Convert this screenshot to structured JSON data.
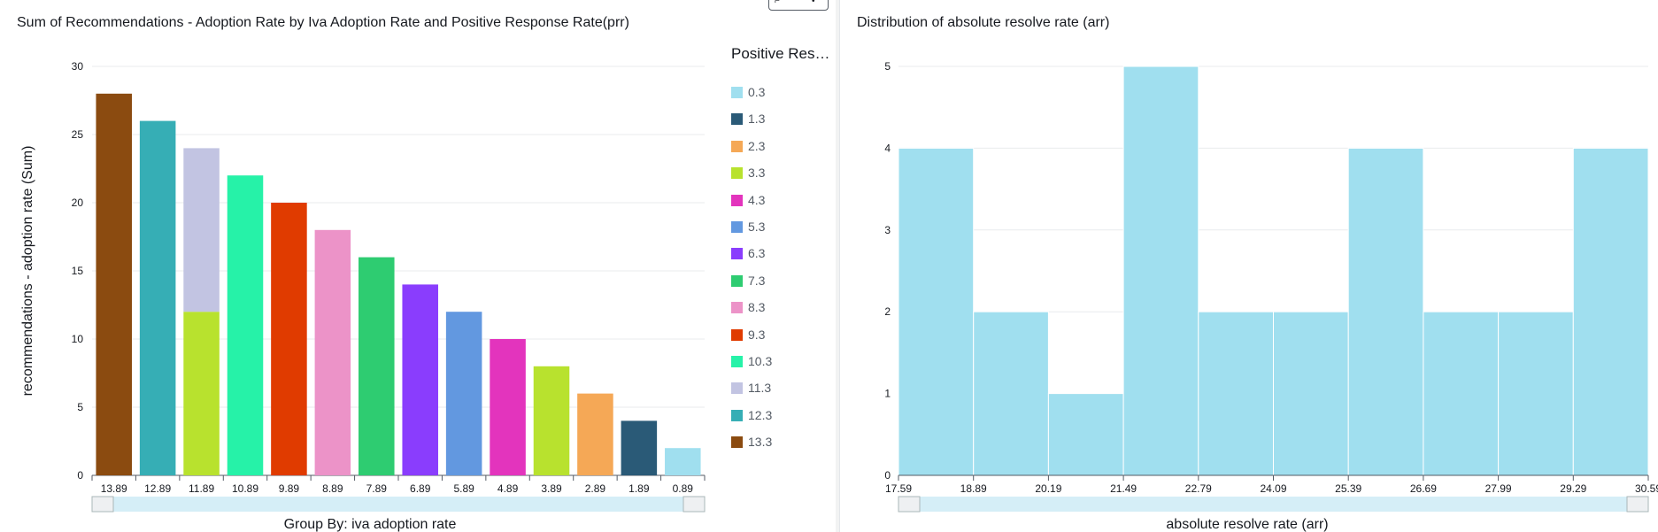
{
  "panels": [
    {
      "title": "Sum of Recommendations - Adoption Rate by Iva Adoption Rate and Positive Response Rate(prr)"
    },
    {
      "title": "Distribution of absolute resolve rate (arr)"
    }
  ],
  "legend": {
    "title": "Positive Res…",
    "items": [
      {
        "label": "0.3",
        "color": "#a0dfef"
      },
      {
        "label": "1.3",
        "color": "#2a5a77"
      },
      {
        "label": "2.3",
        "color": "#f5a856"
      },
      {
        "label": "3.3",
        "color": "#b8e22e"
      },
      {
        "label": "4.3",
        "color": "#e334bd"
      },
      {
        "label": "5.3",
        "color": "#6298e0"
      },
      {
        "label": "6.3",
        "color": "#8a3dfd"
      },
      {
        "label": "7.3",
        "color": "#2ecc71"
      },
      {
        "label": "8.3",
        "color": "#ec93c8"
      },
      {
        "label": "9.3",
        "color": "#e03b00"
      },
      {
        "label": "10.3",
        "color": "#26f2a8"
      },
      {
        "label": "11.3",
        "color": "#c2c4e2"
      },
      {
        "label": "12.3",
        "color": "#36aeb5"
      },
      {
        "label": "13.3",
        "color": "#8b4b10"
      }
    ]
  },
  "chart_data": [
    {
      "type": "bar",
      "stacked": true,
      "title": "Sum of Recommendations - Adoption Rate by Iva Adoption Rate and Positive Response Rate(prr)",
      "xlabel": "Group By: iva adoption rate",
      "ylabel": "recommendations - adoption rate (Sum)",
      "ylim": [
        0,
        30
      ],
      "yticks": [
        0,
        5,
        10,
        15,
        20,
        25,
        30
      ],
      "categories": [
        "13.89",
        "12.89",
        "11.89",
        "10.89",
        "9.89",
        "8.89",
        "7.89",
        "6.89",
        "5.89",
        "4.89",
        "3.89",
        "2.89",
        "1.89",
        "0.89"
      ],
      "series": [
        {
          "name": "0.3",
          "color": "#a0dfef",
          "values": [
            0,
            0,
            0,
            0,
            0,
            0,
            0,
            0,
            0,
            0,
            0,
            0,
            0,
            2
          ]
        },
        {
          "name": "1.3",
          "color": "#2a5a77",
          "values": [
            0,
            0,
            0,
            0,
            0,
            0,
            0,
            0,
            0,
            0,
            0,
            0,
            4,
            0
          ]
        },
        {
          "name": "2.3",
          "color": "#f5a856",
          "values": [
            0,
            0,
            0,
            0,
            0,
            0,
            0,
            0,
            0,
            0,
            0,
            6,
            0,
            0
          ]
        },
        {
          "name": "3.3",
          "color": "#b8e22e",
          "values": [
            0,
            0,
            12,
            0,
            0,
            0,
            0,
            0,
            0,
            0,
            8,
            0,
            0,
            0
          ]
        },
        {
          "name": "4.3",
          "color": "#e334bd",
          "values": [
            0,
            0,
            0,
            0,
            0,
            0,
            0,
            0,
            0,
            10,
            0,
            0,
            0,
            0
          ]
        },
        {
          "name": "5.3",
          "color": "#6298e0",
          "values": [
            0,
            0,
            0,
            0,
            0,
            0,
            0,
            0,
            12,
            0,
            0,
            0,
            0,
            0
          ]
        },
        {
          "name": "6.3",
          "color": "#8a3dfd",
          "values": [
            0,
            0,
            0,
            0,
            0,
            0,
            0,
            14,
            0,
            0,
            0,
            0,
            0,
            0
          ]
        },
        {
          "name": "7.3",
          "color": "#2ecc71",
          "values": [
            0,
            0,
            0,
            0,
            0,
            0,
            16,
            0,
            0,
            0,
            0,
            0,
            0,
            0
          ]
        },
        {
          "name": "8.3",
          "color": "#ec93c8",
          "values": [
            0,
            0,
            0,
            0,
            0,
            18,
            0,
            0,
            0,
            0,
            0,
            0,
            0,
            0
          ]
        },
        {
          "name": "9.3",
          "color": "#e03b00",
          "values": [
            0,
            0,
            0,
            0,
            20,
            0,
            0,
            0,
            0,
            0,
            0,
            0,
            0,
            0
          ]
        },
        {
          "name": "10.3",
          "color": "#26f2a8",
          "values": [
            0,
            0,
            0,
            22,
            0,
            0,
            0,
            0,
            0,
            0,
            0,
            0,
            0,
            0
          ]
        },
        {
          "name": "11.3",
          "color": "#c2c4e2",
          "values": [
            0,
            0,
            12,
            0,
            0,
            0,
            0,
            0,
            0,
            0,
            0,
            0,
            0,
            0
          ]
        },
        {
          "name": "12.3",
          "color": "#36aeb5",
          "values": [
            0,
            26,
            0,
            0,
            0,
            0,
            0,
            0,
            0,
            0,
            0,
            0,
            0,
            0
          ]
        },
        {
          "name": "13.3",
          "color": "#8b4b10",
          "values": [
            28,
            0,
            0,
            0,
            0,
            0,
            0,
            0,
            0,
            0,
            0,
            0,
            0,
            0
          ]
        }
      ],
      "grid": true,
      "legend_position": "right"
    },
    {
      "type": "bar",
      "histogram": true,
      "title": "Distribution of absolute resolve rate (arr)",
      "xlabel": "absolute resolve rate (arr)",
      "ylabel": "",
      "ylim": [
        0,
        5
      ],
      "yticks": [
        0,
        1,
        2,
        3,
        4,
        5
      ],
      "bin_edges": [
        "17.59",
        "18.89",
        "20.19",
        "21.49",
        "22.79",
        "24.09",
        "25.39",
        "26.69",
        "27.99",
        "29.29",
        "30.59"
      ],
      "values": [
        4,
        2,
        1,
        5,
        2,
        2,
        4,
        2,
        2,
        4
      ],
      "color": "#a0dfef",
      "grid": true
    }
  ]
}
